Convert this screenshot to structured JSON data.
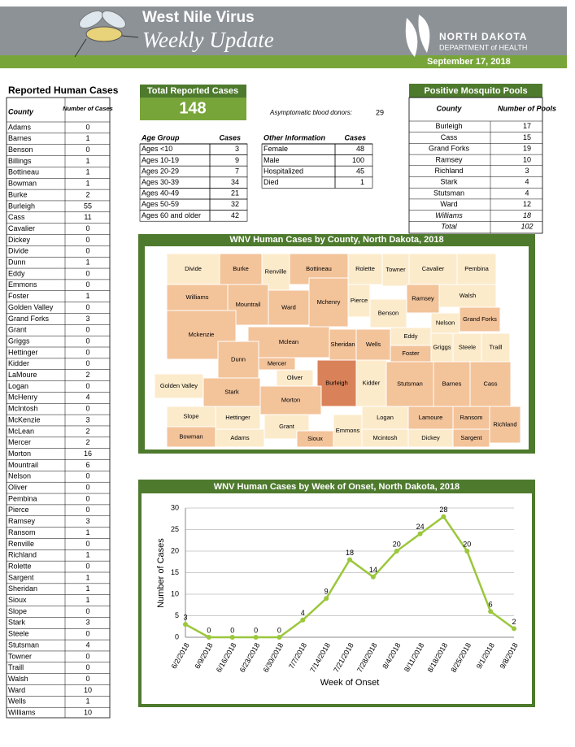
{
  "header": {
    "title": "West Nile Virus",
    "subtitle": "Weekly Update",
    "org": "NORTH DAKOTA",
    "org_sub": "DEPARTMENT of HEALTH",
    "date": "September 17, 2018"
  },
  "county_cases": {
    "title": "Reported Human Cases",
    "headers": [
      "County",
      "Number of Cases"
    ],
    "rows": [
      [
        "Adams",
        0
      ],
      [
        "Barnes",
        1
      ],
      [
        "Benson",
        0
      ],
      [
        "Billings",
        1
      ],
      [
        "Bottineau",
        1
      ],
      [
        "Bowman",
        1
      ],
      [
        "Burke",
        2
      ],
      [
        "Burleigh",
        55
      ],
      [
        "Cass",
        11
      ],
      [
        "Cavalier",
        0
      ],
      [
        "Dickey",
        0
      ],
      [
        "Divide",
        0
      ],
      [
        "Dunn",
        1
      ],
      [
        "Eddy",
        0
      ],
      [
        "Emmons",
        0
      ],
      [
        "Foster",
        1
      ],
      [
        "Golden Valley",
        0
      ],
      [
        "Grand Forks",
        3
      ],
      [
        "Grant",
        0
      ],
      [
        "Griggs",
        0
      ],
      [
        "Hettinger",
        0
      ],
      [
        "Kidder",
        0
      ],
      [
        "LaMoure",
        2
      ],
      [
        "Logan",
        0
      ],
      [
        "McHenry",
        4
      ],
      [
        "McIntosh",
        0
      ],
      [
        "McKenzie",
        3
      ],
      [
        "McLean",
        2
      ],
      [
        "Mercer",
        2
      ],
      [
        "Morton",
        16
      ],
      [
        "Mountrail",
        6
      ],
      [
        "Nelson",
        0
      ],
      [
        "Oliver",
        0
      ],
      [
        "Pembina",
        0
      ],
      [
        "Pierce",
        0
      ],
      [
        "Ramsey",
        3
      ],
      [
        "Ransom",
        1
      ],
      [
        "Renville",
        0
      ],
      [
        "Richland",
        1
      ],
      [
        "Rolette",
        0
      ],
      [
        "Sargent",
        1
      ],
      [
        "Sheridan",
        1
      ],
      [
        "Sioux",
        1
      ],
      [
        "Slope",
        0
      ],
      [
        "Stark",
        3
      ],
      [
        "Steele",
        0
      ],
      [
        "Stutsman",
        4
      ],
      [
        "Towner",
        0
      ],
      [
        "Traill",
        0
      ],
      [
        "Walsh",
        0
      ],
      [
        "Ward",
        10
      ],
      [
        "Wells",
        1
      ],
      [
        "Williams",
        10
      ]
    ]
  },
  "total": {
    "title": "Total Reported Cases",
    "value": 148
  },
  "asymptomatic": {
    "label": "Asymptomatic blood donors:",
    "value": 29
  },
  "age_table": {
    "headers": [
      "Age Group",
      "Cases"
    ],
    "rows": [
      [
        "Ages <10",
        3
      ],
      [
        "Ages 10-19",
        9
      ],
      [
        "Ages 20-29",
        7
      ],
      [
        "Ages 30-39",
        34
      ],
      [
        "Ages 40-49",
        21
      ],
      [
        "Ages 50-59",
        32
      ],
      [
        "Ages 60 and older",
        42
      ]
    ]
  },
  "other_table": {
    "headers": [
      "Other Information",
      "Cases"
    ],
    "rows": [
      [
        "Female",
        48
      ],
      [
        "Male",
        100
      ],
      [
        "Hospitalized",
        45
      ],
      [
        "Died",
        1
      ]
    ]
  },
  "mosquito": {
    "title": "Positive Mosquito Pools",
    "headers": [
      "County",
      "Number of Pools"
    ],
    "rows": [
      [
        "Burleigh",
        17
      ],
      [
        "Cass",
        15
      ],
      [
        "Grand Forks",
        19
      ],
      [
        "Ramsey",
        10
      ],
      [
        "Richland",
        3
      ],
      [
        "Stark",
        4
      ],
      [
        "Stutsman",
        4
      ],
      [
        "Ward",
        12
      ],
      [
        "Williams",
        18
      ]
    ],
    "total": [
      "Total",
      102
    ]
  },
  "map": {
    "title": "WNV Human Cases by County, North Dakota, 2018",
    "counties": [
      "Divide",
      "Burke",
      "Renville",
      "Bottineau",
      "Rolette",
      "Towner",
      "Cavalier",
      "Pembina",
      "Williams",
      "Mountrail",
      "Ward",
      "Mchenry",
      "Pierce",
      "Benson",
      "Ramsey",
      "Walsh",
      "Nelson",
      "Grand Forks",
      "Mckenzie",
      "Mclean",
      "Sheridan",
      "Wells",
      "Eddy",
      "Foster",
      "Griggs",
      "Steele",
      "Traill",
      "Dunn",
      "Mercer",
      "Oliver",
      "Burleigh",
      "Kidder",
      "Stutsman",
      "Barnes",
      "Cass",
      "Golden Valley",
      "Stark",
      "Morton",
      "Slope",
      "Hettinger",
      "Grant",
      "Emmons",
      "Logan",
      "Lamoure",
      "Ransom",
      "Richland",
      "Bowman",
      "Adams",
      "Sioux",
      "Mcintosh",
      "Dickey",
      "Sargent"
    ]
  },
  "chart_data": {
    "type": "line",
    "title": "WNV Human Cases by Week of Onset, North Dakota, 2018",
    "x_label": "Week of Onset",
    "y_label": "Number of Cases",
    "categories": [
      "6/2/2018",
      "6/9/2018",
      "6/16/2018",
      "6/23/2018",
      "6/30/2018",
      "7/7/2018",
      "7/14/2018",
      "7/21/2018",
      "7/28/2018",
      "8/4/2018",
      "8/11/2018",
      "8/18/2018",
      "8/25/2018",
      "9/1/2018",
      "9/8/2018"
    ],
    "values": [
      3,
      0,
      0,
      0,
      0,
      4,
      9,
      18,
      14,
      20,
      24,
      28,
      20,
      6,
      2
    ],
    "color": "#9bc73c",
    "ylim": [
      0,
      30
    ],
    "yticks": [
      0,
      5,
      10,
      15,
      20,
      25,
      30
    ],
    "grid": true
  }
}
